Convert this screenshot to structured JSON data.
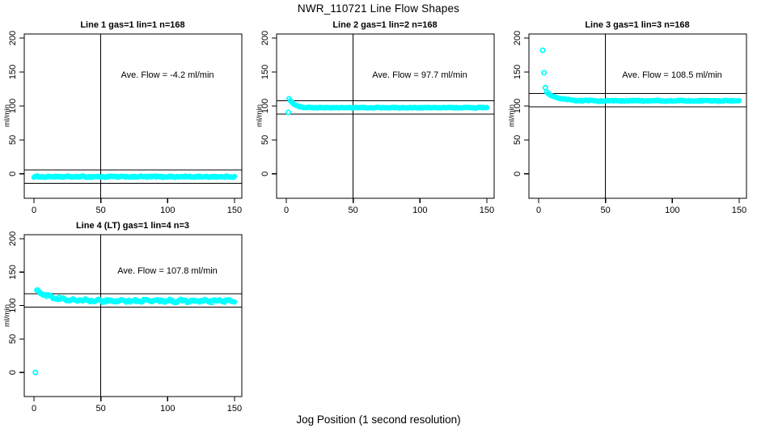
{
  "page": {
    "title": "NWR_110721  Line Flow Shapes",
    "xlabel": "Jog Position (1 second resolution)"
  },
  "colors": {
    "points": "#00ffff",
    "axis": "#000000",
    "background": "#ffffff",
    "text": "#000000"
  },
  "chart_data": [
    {
      "type": "scatter",
      "title": "Line 1 gas=1 lin=1 n=168",
      "annotation": "Ave. Flow =  -4.2  ml/min",
      "ave_flow_ml_min": -4.2,
      "gas": 1,
      "lin": 1,
      "n": 168,
      "ylabel": "ml/min",
      "xlim": [
        -7.3,
        155.5
      ],
      "ylim": [
        -36,
        206
      ],
      "x_ticks": [
        0,
        50,
        100,
        150
      ],
      "y_ticks": [
        0,
        50,
        100,
        150,
        200
      ],
      "ref_lines_y": [
        5.8,
        -14.2
      ],
      "vline_x": 50,
      "grid": false,
      "legend": null,
      "annotation_anchor": {
        "x": 100,
        "y": 145
      },
      "series": {
        "model": "exponential-decay-to-baseline",
        "x_start": 0,
        "x_end": 150,
        "n_points": 168,
        "baseline": -4.3,
        "amplitude": 0,
        "tau": 1,
        "jitter": 0.9,
        "wiggle_amp": 0.3,
        "wiggle_period": 11,
        "outliers": []
      }
    },
    {
      "type": "scatter",
      "title": "Line 2 gas=1 lin=2 n=168",
      "annotation": "Ave. Flow =  97.7  ml/min",
      "ave_flow_ml_min": 97.7,
      "gas": 1,
      "lin": 2,
      "n": 168,
      "ylabel": "ml/min",
      "xlim": [
        -7.3,
        155.5
      ],
      "ylim": [
        -36,
        206
      ],
      "x_ticks": [
        0,
        50,
        100,
        150
      ],
      "y_ticks": [
        0,
        50,
        100,
        150,
        200
      ],
      "ref_lines_y": [
        107.7,
        87.7
      ],
      "vline_x": 50,
      "grid": false,
      "legend": null,
      "annotation_anchor": {
        "x": 100,
        "y": 145
      },
      "series": {
        "model": "exponential-decay-to-baseline",
        "x_start": 2,
        "x_end": 150,
        "n_points": 166,
        "baseline": 97.4,
        "amplitude": 13.5,
        "tau": 3.8,
        "jitter": 0.55,
        "wiggle_amp": 0.2,
        "wiggle_period": 13,
        "outliers": [
          [
            1.5,
            90.5
          ]
        ]
      }
    },
    {
      "type": "scatter",
      "title": "Line 3 gas=1 lin=3 n=168",
      "annotation": "Ave. Flow =  108.5  ml/min",
      "ave_flow_ml_min": 108.5,
      "gas": 1,
      "lin": 3,
      "n": 168,
      "ylabel": "ml/min",
      "xlim": [
        -7.3,
        155.5
      ],
      "ylim": [
        -36,
        206
      ],
      "x_ticks": [
        0,
        50,
        100,
        150
      ],
      "y_ticks": [
        0,
        50,
        100,
        150,
        200
      ],
      "ref_lines_y": [
        118.5,
        98.5
      ],
      "vline_x": 50,
      "grid": false,
      "legend": null,
      "annotation_anchor": {
        "x": 100,
        "y": 145
      },
      "series": {
        "model": "exponential-decay-to-baseline",
        "x_start": 6,
        "x_end": 150,
        "n_points": 162,
        "baseline": 107.5,
        "amplitude": 12.5,
        "tau": 7.5,
        "jitter": 0.7,
        "wiggle_amp": 0.3,
        "wiggle_period": 17,
        "outliers": [
          [
            3,
            182
          ],
          [
            4,
            149
          ],
          [
            5,
            127
          ]
        ]
      }
    },
    {
      "type": "scatter",
      "title": "Line 4 (LT) gas=1 lin=4 n=3",
      "annotation": "Ave. Flow =  107.8  ml/min",
      "ave_flow_ml_min": 107.8,
      "gas": 1,
      "lin": 4,
      "n": 3,
      "ylabel": "ml/min",
      "xlim": [
        -7.3,
        155.5
      ],
      "ylim": [
        -36,
        206
      ],
      "x_ticks": [
        0,
        50,
        100,
        150
      ],
      "y_ticks": [
        0,
        50,
        100,
        150,
        200
      ],
      "ref_lines_y": [
        117.8,
        97.8
      ],
      "vline_x": 50,
      "grid": false,
      "legend": null,
      "annotation_anchor": {
        "x": 100,
        "y": 145
      },
      "series": {
        "model": "exponential-decay-to-baseline",
        "x_start": 2,
        "x_end": 150,
        "n_points": 160,
        "baseline": 107.0,
        "amplitude": 15.5,
        "tau": 11,
        "jitter": 1.6,
        "wiggle_amp": 1.0,
        "wiggle_period": 9,
        "outliers": [
          [
            1,
            0
          ]
        ]
      }
    }
  ]
}
